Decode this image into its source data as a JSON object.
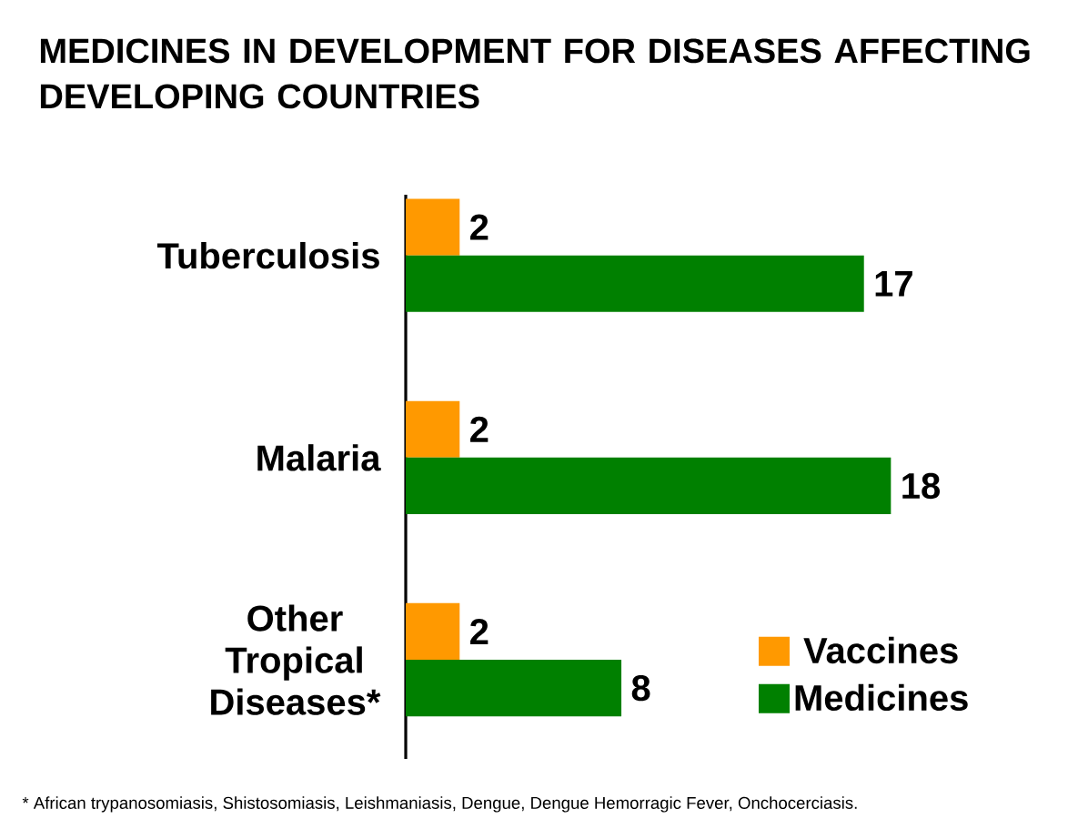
{
  "chart_data": {
    "type": "bar",
    "orientation": "horizontal",
    "title": "MEDICINES IN DEVELOPMENT FOR DISEASES AFFECTING DEVELOPING COUNTRIES",
    "categories": [
      "Tuberculosis",
      "Malaria",
      "Other Tropical Diseases*"
    ],
    "series": [
      {
        "name": "Vaccines",
        "color": "#ff9900",
        "values": [
          2,
          2,
          2
        ]
      },
      {
        "name": "Medicines",
        "color": "#008000",
        "values": [
          17,
          18,
          8
        ]
      }
    ],
    "data_labels": true,
    "legend": "bottom right",
    "annotations": [
      "* African trypanosomiasis, Shistosomiasis, Leishmaniasis, Dengue, Dengue Hemorragic Fever, Onchocerciasis."
    ]
  }
}
